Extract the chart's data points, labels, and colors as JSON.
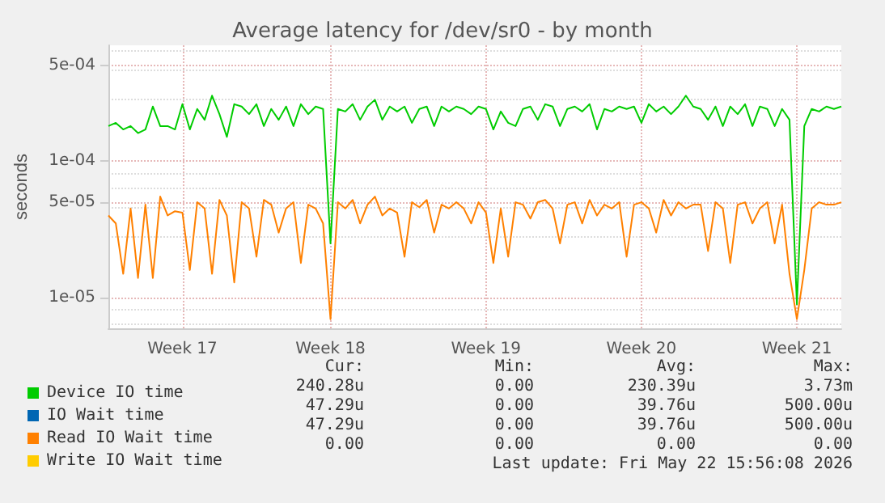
{
  "chart_data": {
    "type": "line",
    "title": "Average latency for /dev/sr0 - by month",
    "ylabel": "seconds",
    "categories": [
      null,
      null,
      null,
      null,
      null,
      null,
      null,
      null,
      null,
      null,
      "Week 17",
      null,
      null,
      null,
      null,
      null,
      null,
      null,
      null,
      null,
      null,
      null,
      null,
      null,
      null,
      null,
      null,
      null,
      null,
      null,
      "Week 18",
      null,
      null,
      null,
      null,
      null,
      null,
      null,
      null,
      null,
      null,
      null,
      null,
      null,
      null,
      null,
      null,
      null,
      null,
      null,
      null,
      "Week 19",
      null,
      null,
      null,
      null,
      null,
      null,
      null,
      null,
      null,
      null,
      null,
      null,
      null,
      null,
      null,
      null,
      null,
      null,
      null,
      null,
      "Week 20",
      null,
      null,
      null,
      null,
      null,
      null,
      null,
      null,
      null,
      null,
      null,
      null,
      null,
      null,
      null,
      null,
      null,
      null,
      null,
      null,
      "Week 21",
      null,
      null,
      null,
      null,
      null,
      null
    ],
    "series": [
      {
        "name": "Device IO time",
        "color": "#00cc00",
        "values": [
          0.00018,
          0.00019,
          0.00017,
          0.00018,
          0.00016,
          0.00017,
          0.00025,
          0.00018,
          0.00018,
          0.00017,
          0.00026,
          0.00017,
          0.00024,
          0.0002,
          0.0003,
          0.00022,
          0.00015,
          0.00026,
          0.00025,
          0.00022,
          0.00026,
          0.00018,
          0.00024,
          0.0002,
          0.00025,
          0.00018,
          0.00026,
          0.00022,
          0.00025,
          0.00024,
          2.5e-05,
          0.00024,
          0.00023,
          0.00026,
          0.0002,
          0.00025,
          0.00028,
          0.0002,
          0.00025,
          0.00023,
          0.00025,
          0.00019,
          0.00024,
          0.00025,
          0.00018,
          0.00025,
          0.00023,
          0.00025,
          0.00024,
          0.00022,
          0.00025,
          0.00024,
          0.00017,
          0.00023,
          0.00019,
          0.00018,
          0.00024,
          0.00025,
          0.0002,
          0.00026,
          0.00025,
          0.00018,
          0.00024,
          0.00025,
          0.00023,
          0.00026,
          0.00017,
          0.00024,
          0.00023,
          0.00025,
          0.00024,
          0.00025,
          0.00019,
          0.00026,
          0.00023,
          0.00025,
          0.00022,
          0.00025,
          0.0003,
          0.00025,
          0.00024,
          0.0002,
          0.00025,
          0.00018,
          0.00025,
          0.00022,
          0.00026,
          0.00018,
          0.00025,
          0.00024,
          0.00018,
          0.00024,
          0.0002,
          9e-06,
          0.00018,
          0.00024,
          0.00023,
          0.00025,
          0.00024,
          0.00025
        ]
      },
      {
        "name": "IO Wait time",
        "color": "#0066b3",
        "values": [
          null,
          null,
          null,
          null,
          null,
          null,
          null,
          null,
          null,
          null,
          null,
          null,
          null,
          null,
          null,
          null,
          null,
          null,
          null,
          null,
          null,
          null,
          null,
          null,
          null,
          null,
          null,
          null,
          null,
          null,
          null,
          null,
          null,
          null,
          null,
          null,
          null,
          null,
          null,
          null,
          null,
          null,
          null,
          null,
          null,
          null,
          null,
          null,
          null,
          null,
          null,
          null,
          null,
          null,
          null,
          null,
          null,
          null,
          null,
          null,
          null,
          null,
          null,
          null,
          null,
          null,
          null,
          null,
          null,
          null,
          null,
          null,
          null,
          null,
          null,
          null,
          null,
          null,
          null,
          null,
          null,
          null,
          null,
          null,
          null,
          null,
          null,
          null,
          null,
          null,
          null,
          null,
          null,
          null,
          null,
          null,
          null,
          null,
          null,
          null
        ]
      },
      {
        "name": "Read IO Wait time",
        "color": "#ff8000",
        "values": [
          4e-05,
          3.5e-05,
          1.5e-05,
          4.5e-05,
          1.4e-05,
          4.8e-05,
          1.4e-05,
          5.5e-05,
          4e-05,
          4.3e-05,
          4.2e-05,
          1.6e-05,
          5e-05,
          4.5e-05,
          1.5e-05,
          5.2e-05,
          4e-05,
          1.3e-05,
          5e-05,
          4.5e-05,
          2e-05,
          5.2e-05,
          4.8e-05,
          3e-05,
          4.5e-05,
          5e-05,
          1.8e-05,
          4.8e-05,
          4.5e-05,
          3.5e-05,
          7e-06,
          5e-05,
          4.5e-05,
          5.2e-05,
          3.5e-05,
          4.8e-05,
          5.5e-05,
          4e-05,
          4.5e-05,
          4.2e-05,
          2e-05,
          5e-05,
          4.6e-05,
          5.2e-05,
          3e-05,
          4.8e-05,
          4.5e-05,
          5e-05,
          4.5e-05,
          3.5e-05,
          5e-05,
          4.2e-05,
          1.8e-05,
          4.5e-05,
          2e-05,
          5e-05,
          4.8e-05,
          3.8e-05,
          5e-05,
          5.2e-05,
          4.5e-05,
          2.5e-05,
          4.8e-05,
          5e-05,
          3.5e-05,
          5.2e-05,
          4e-05,
          4.8e-05,
          4.5e-05,
          5e-05,
          2e-05,
          4.8e-05,
          5e-05,
          4.5e-05,
          3e-05,
          5.2e-05,
          4e-05,
          5e-05,
          4.5e-05,
          4.8e-05,
          4.8e-05,
          2.2e-05,
          5e-05,
          4.5e-05,
          1.8e-05,
          4.8e-05,
          5e-05,
          3.5e-05,
          4.5e-05,
          5e-05,
          2.5e-05,
          4.8e-05,
          1.5e-05,
          7e-06,
          1.6e-05,
          4.5e-05,
          5e-05,
          4.8e-05,
          4.8e-05,
          5e-05
        ]
      },
      {
        "name": "Write IO Wait time",
        "color": "#ffcc00",
        "values": [
          null,
          null,
          null,
          null,
          null,
          null,
          null,
          null,
          null,
          null,
          null,
          null,
          null,
          null,
          null,
          null,
          null,
          null,
          null,
          null,
          null,
          null,
          null,
          null,
          null,
          null,
          null,
          null,
          null,
          null,
          null,
          null,
          null,
          null,
          null,
          null,
          null,
          null,
          null,
          null,
          null,
          null,
          null,
          null,
          null,
          null,
          null,
          null,
          null,
          null,
          null,
          null,
          null,
          null,
          null,
          null,
          null,
          null,
          null,
          null,
          null,
          null,
          null,
          null,
          null,
          null,
          null,
          null,
          null,
          null,
          null,
          null,
          null,
          null,
          null,
          null,
          null,
          null,
          null,
          null,
          null,
          null,
          null,
          null,
          null,
          null,
          null,
          null,
          null,
          null,
          null,
          null,
          null,
          null,
          null,
          null,
          null,
          null,
          null,
          null
        ]
      }
    ],
    "log": "y",
    "ylim": [
      6e-06,
      0.0007
    ],
    "yticks": [
      {
        "value": 1e-05,
        "label": "1e-05"
      },
      {
        "value": 5e-05,
        "label": "5e-05"
      },
      {
        "value": 0.0001,
        "label": "1e-04"
      },
      {
        "value": 0.0005,
        "label": "5e-04"
      }
    ],
    "grid": true,
    "legend": "bottom",
    "marker": "none",
    "line_style": "solid",
    "annotations": [
      "Cur:",
      "Min:",
      "Avg:",
      "Max:",
      "240.28u",
      "0.00",
      "230.39u",
      "3.73m",
      "47.29u",
      "0.00",
      "39.76u",
      "500.00u",
      "47.29u",
      "0.00",
      "39.76u",
      "500.00u",
      "0.00",
      "0.00",
      "0.00",
      "0.00",
      "Last update: Fri May 22 15:56:08 2026"
    ]
  }
}
